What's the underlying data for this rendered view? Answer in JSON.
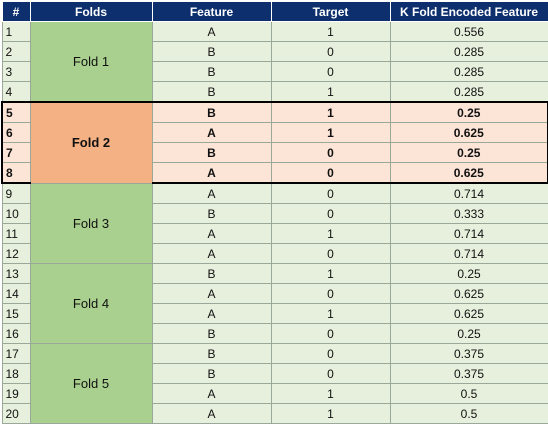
{
  "headers": {
    "num": "#",
    "folds": "Folds",
    "feature": "Feature",
    "target": "Target",
    "encoded": "K Fold Encoded Feature"
  },
  "folds": [
    {
      "label": "Fold 1",
      "highlighted": false,
      "rows": [
        {
          "num": "1",
          "feature": "A",
          "target": "1",
          "encoded": "0.556"
        },
        {
          "num": "2",
          "feature": "B",
          "target": "0",
          "encoded": "0.285"
        },
        {
          "num": "3",
          "feature": "B",
          "target": "0",
          "encoded": "0.285"
        },
        {
          "num": "4",
          "feature": "B",
          "target": "1",
          "encoded": "0.285"
        }
      ]
    },
    {
      "label": "Fold 2",
      "highlighted": true,
      "rows": [
        {
          "num": "5",
          "feature": "B",
          "target": "1",
          "encoded": "0.25"
        },
        {
          "num": "6",
          "feature": "A",
          "target": "1",
          "encoded": "0.625"
        },
        {
          "num": "7",
          "feature": "B",
          "target": "0",
          "encoded": "0.25"
        },
        {
          "num": "8",
          "feature": "A",
          "target": "0",
          "encoded": "0.625"
        }
      ]
    },
    {
      "label": "Fold 3",
      "highlighted": false,
      "rows": [
        {
          "num": "9",
          "feature": "A",
          "target": "0",
          "encoded": "0.714"
        },
        {
          "num": "10",
          "feature": "B",
          "target": "0",
          "encoded": "0.333"
        },
        {
          "num": "11",
          "feature": "A",
          "target": "1",
          "encoded": "0.714"
        },
        {
          "num": "12",
          "feature": "A",
          "target": "0",
          "encoded": "0.714"
        }
      ]
    },
    {
      "label": "Fold 4",
      "highlighted": false,
      "rows": [
        {
          "num": "13",
          "feature": "B",
          "target": "1",
          "encoded": "0.25"
        },
        {
          "num": "14",
          "feature": "A",
          "target": "0",
          "encoded": "0.625"
        },
        {
          "num": "15",
          "feature": "A",
          "target": "1",
          "encoded": "0.625"
        },
        {
          "num": "16",
          "feature": "B",
          "target": "0",
          "encoded": "0.25"
        }
      ]
    },
    {
      "label": "Fold 5",
      "highlighted": false,
      "rows": [
        {
          "num": "17",
          "feature": "B",
          "target": "0",
          "encoded": "0.375"
        },
        {
          "num": "18",
          "feature": "B",
          "target": "0",
          "encoded": "0.375"
        },
        {
          "num": "19",
          "feature": "A",
          "target": "1",
          "encoded": "0.5"
        },
        {
          "num": "20",
          "feature": "A",
          "target": "1",
          "encoded": "0.5"
        }
      ]
    }
  ],
  "colors": {
    "header_bg": "#0d2f6e",
    "fold_bg": "#a9d08e",
    "fold_highlight_bg": "#f4b183",
    "row_bg": "#e6f0dc",
    "row_highlight_bg": "#fce4d6"
  }
}
